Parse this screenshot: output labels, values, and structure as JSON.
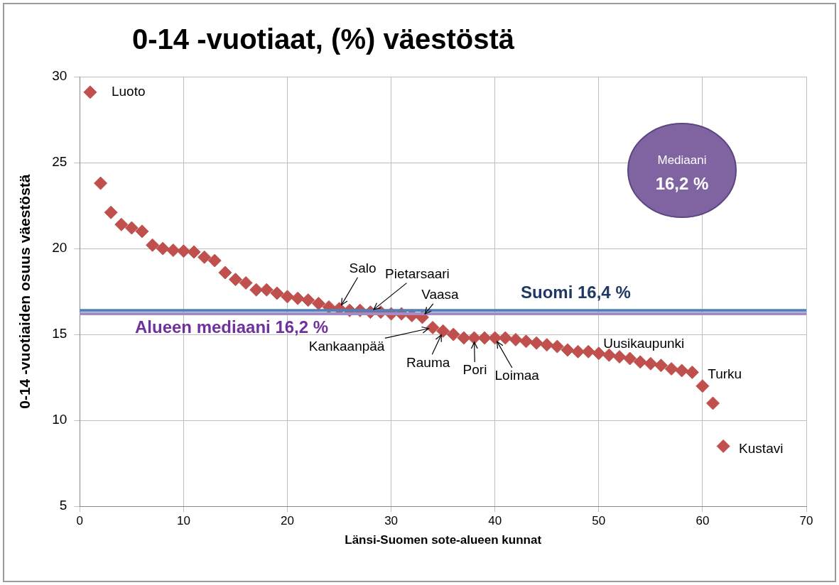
{
  "chart_data": {
    "type": "scatter",
    "title": "0-14 -vuotiaat, (%) väestöstä",
    "x_label": "Länsi-Suomen sote-alueen kunnat",
    "y_label": "0-14 -vuotiaiden osuus väestöstä",
    "x": [
      1,
      2,
      3,
      4,
      5,
      6,
      7,
      8,
      9,
      10,
      11,
      12,
      13,
      14,
      15,
      16,
      17,
      18,
      19,
      20,
      21,
      22,
      23,
      24,
      25,
      26,
      27,
      28,
      29,
      30,
      31,
      32,
      33,
      34,
      35,
      36,
      37,
      38,
      39,
      40,
      41,
      42,
      43,
      44,
      45,
      46,
      47,
      48,
      49,
      50,
      51,
      52,
      53,
      54,
      55,
      56,
      57,
      58,
      59,
      60,
      61,
      62
    ],
    "values": [
      29.1,
      23.8,
      22.1,
      21.4,
      21.2,
      21.0,
      20.2,
      20.0,
      19.9,
      19.85,
      19.8,
      19.5,
      19.3,
      18.6,
      18.2,
      18.0,
      17.6,
      17.6,
      17.4,
      17.2,
      17.1,
      17.0,
      16.8,
      16.6,
      16.5,
      16.4,
      16.4,
      16.3,
      16.3,
      16.2,
      16.2,
      16.1,
      16.0,
      15.4,
      15.2,
      15.0,
      14.8,
      14.8,
      14.8,
      14.8,
      14.8,
      14.7,
      14.6,
      14.5,
      14.4,
      14.3,
      14.1,
      14.0,
      14.0,
      13.9,
      13.8,
      13.7,
      13.6,
      13.4,
      13.3,
      13.2,
      13.0,
      12.9,
      12.8,
      12.0,
      11.0,
      8.5
    ],
    "color": "#c0504d",
    "marker": "diamond",
    "xlim": [
      0,
      70
    ],
    "xticks": [
      0,
      10,
      20,
      30,
      40,
      50,
      60,
      70
    ],
    "ylim": [
      5,
      30
    ],
    "yticks": [
      5,
      10,
      15,
      20,
      25,
      30
    ],
    "grid": true,
    "reference_lines": [
      {
        "label": "Suomi 16,4 %",
        "value": 16.4,
        "color": "#4f81bd"
      },
      {
        "label": "Alueen mediaani 16,2 %",
        "value": 16.2,
        "color": "#a58bc4"
      }
    ],
    "annotations": [
      {
        "text": "Luoto",
        "x": 1,
        "y": 29.1
      },
      {
        "text": "Kustavi",
        "x": 62,
        "y": 8.5
      },
      {
        "text": "Salo",
        "x": 25,
        "y": 16.5
      },
      {
        "text": "Pietarsaari",
        "x": 28,
        "y": 16.3
      },
      {
        "text": "Vaasa",
        "x": 33,
        "y": 16.0
      },
      {
        "text": "Kankaanpää",
        "x": 34,
        "y": 15.4
      },
      {
        "text": "Rauma",
        "x": 35,
        "y": 15.2
      },
      {
        "text": "Pori",
        "x": 38,
        "y": 14.8
      },
      {
        "text": "Loimaa",
        "x": 40,
        "y": 14.8
      },
      {
        "text": "Uusikaupunki",
        "x": 54,
        "y": 13.4
      },
      {
        "text": "Turku",
        "x": 59,
        "y": 12.8
      }
    ],
    "badge": {
      "title": "Mediaani",
      "value": 16.2,
      "label": "16,2 %"
    }
  }
}
